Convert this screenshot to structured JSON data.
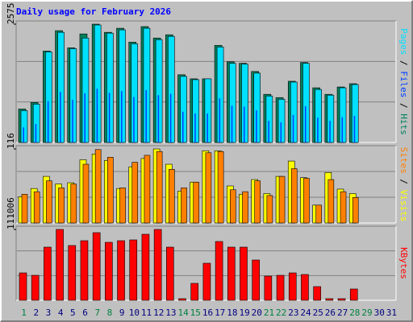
{
  "title": "Daily usage for February 2026",
  "legend_separator": " / ",
  "chart_data": [
    {
      "type": "bar",
      "ylim": [
        0,
        2575
      ],
      "yticks": [
        2575
      ],
      "series": [
        {
          "name": "Hits",
          "color": "#00805c",
          "values": [
            728,
            870,
            1989,
            2433,
            2060,
            2362,
            2575,
            2397,
            2486,
            2184,
            2522,
            2273,
            2344,
            1474,
            1385,
            1385,
            2113,
            1758,
            1723,
            1545,
            1048,
            977,
            1332,
            1740,
            1190,
            1048,
            1208,
            1279,
            null,
            null,
            null
          ]
        },
        {
          "name": "Files",
          "color": "#0040ff",
          "values": [
            330,
            400,
            900,
            1100,
            930,
            1070,
            1170,
            1080,
            1120,
            990,
            1140,
            1030,
            1060,
            670,
            630,
            630,
            960,
            800,
            780,
            700,
            470,
            440,
            600,
            790,
            540,
            470,
            550,
            580,
            null,
            null,
            null
          ]
        },
        {
          "name": "Pages",
          "color": "#00e0ff",
          "values": [
            693,
            835,
            1971,
            2397,
            2042,
            2273,
            2557,
            2380,
            2451,
            2149,
            2486,
            2238,
            2309,
            1438,
            1367,
            1385,
            2078,
            1723,
            1705,
            1509,
            1012,
            941,
            1314,
            1723,
            1154,
            1030,
            1190,
            1261,
            null,
            null,
            null
          ]
        }
      ]
    },
    {
      "type": "bar",
      "ylim": [
        0,
        116
      ],
      "yticks": [
        116
      ],
      "series": [
        {
          "name": "Visits",
          "color": "#ffff00",
          "values": [
            41,
            54,
            73,
            61,
            63,
            99,
            108,
            98,
            54,
            88,
            101,
            116,
            92,
            50,
            64,
            113,
            113,
            58,
            45,
            68,
            46,
            73,
            97,
            71,
            28,
            79,
            53,
            46,
            null,
            null,
            null
          ]
        },
        {
          "name": "Sites",
          "color": "#ff8000",
          "values": [
            45,
            49,
            66,
            55,
            61,
            92,
            115,
            103,
            55,
            95,
            106,
            112,
            84,
            55,
            64,
            110,
            112,
            52,
            49,
            66,
            43,
            73,
            85,
            70,
            28,
            68,
            49,
            40,
            null,
            null,
            null
          ]
        }
      ]
    },
    {
      "type": "bar",
      "ylim": [
        0,
        111006
      ],
      "yticks": [
        111006
      ],
      "series": [
        {
          "name": "KBytes",
          "color": "#ff0000",
          "values": [
            42890,
            39105,
            83255,
            111006,
            85778,
            93346,
            105961,
            90823,
            93346,
            94607,
            103438,
            111006,
            83255,
            2523,
            26490,
            58026,
            92085,
            83255,
            83255,
            63072,
            37844,
            39105,
            42890,
            40366,
            21445,
            2523,
            2523,
            17660,
            null,
            null,
            null
          ]
        }
      ],
      "categories": [
        "1",
        "2",
        "3",
        "4",
        "5",
        "6",
        "7",
        "8",
        "9",
        "10",
        "11",
        "12",
        "13",
        "14",
        "15",
        "16",
        "17",
        "18",
        "19",
        "20",
        "21",
        "22",
        "23",
        "24",
        "25",
        "26",
        "27",
        "28",
        "29",
        "30",
        "31"
      ],
      "category_colors": [
        "#008040",
        "#000080",
        "#000080",
        "#000080",
        "#000080",
        "#000080",
        "#008040",
        "#008040",
        "#000080",
        "#000080",
        "#000080",
        "#000080",
        "#000080",
        "#008040",
        "#008040",
        "#000080",
        "#000080",
        "#000080",
        "#000080",
        "#000080",
        "#008040",
        "#008040",
        "#000080",
        "#000080",
        "#000080",
        "#000080",
        "#000080",
        "#008040",
        "#008040",
        "#000080",
        "#000080"
      ]
    }
  ]
}
